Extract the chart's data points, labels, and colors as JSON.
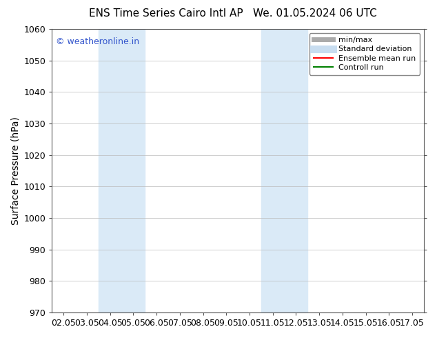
{
  "title_left": "ENS Time Series Cairo Intl AP",
  "title_right": "We. 01.05.2024 06 UTC",
  "ylabel": "Surface Pressure (hPa)",
  "ylim": [
    970,
    1060
  ],
  "yticks": [
    970,
    980,
    990,
    1000,
    1010,
    1020,
    1030,
    1040,
    1050,
    1060
  ],
  "xtick_labels": [
    "02.05",
    "03.05",
    "04.05",
    "05.05",
    "06.05",
    "07.05",
    "08.05",
    "09.05",
    "10.05",
    "11.05",
    "12.05",
    "13.05",
    "14.05",
    "15.05",
    "16.05",
    "17.05"
  ],
  "xtick_positions": [
    0,
    1,
    2,
    3,
    4,
    5,
    6,
    7,
    8,
    9,
    10,
    11,
    12,
    13,
    14,
    15
  ],
  "shaded_regions": [
    {
      "x_start": 2.0,
      "x_end": 4.0,
      "color": "#daeaf7"
    },
    {
      "x_start": 9.0,
      "x_end": 11.0,
      "color": "#daeaf7"
    }
  ],
  "watermark_text": "© weatheronline.in",
  "watermark_color": "#3355cc",
  "watermark_fontsize": 9,
  "legend_items": [
    {
      "label": "min/max",
      "color": "#aaaaaa",
      "lw": 5,
      "style": "solid"
    },
    {
      "label": "Standard deviation",
      "color": "#c8ddf0",
      "lw": 8,
      "style": "solid"
    },
    {
      "label": "Ensemble mean run",
      "color": "red",
      "lw": 1.5,
      "style": "solid"
    },
    {
      "label": "Controll run",
      "color": "green",
      "lw": 1.5,
      "style": "solid"
    }
  ],
  "bg_color": "#ffffff",
  "plot_bg_color": "#ffffff",
  "title_fontsize": 11,
  "ylabel_fontsize": 10,
  "tick_fontsize": 9,
  "grid_color": "#bbbbbb",
  "grid_lw": 0.5
}
